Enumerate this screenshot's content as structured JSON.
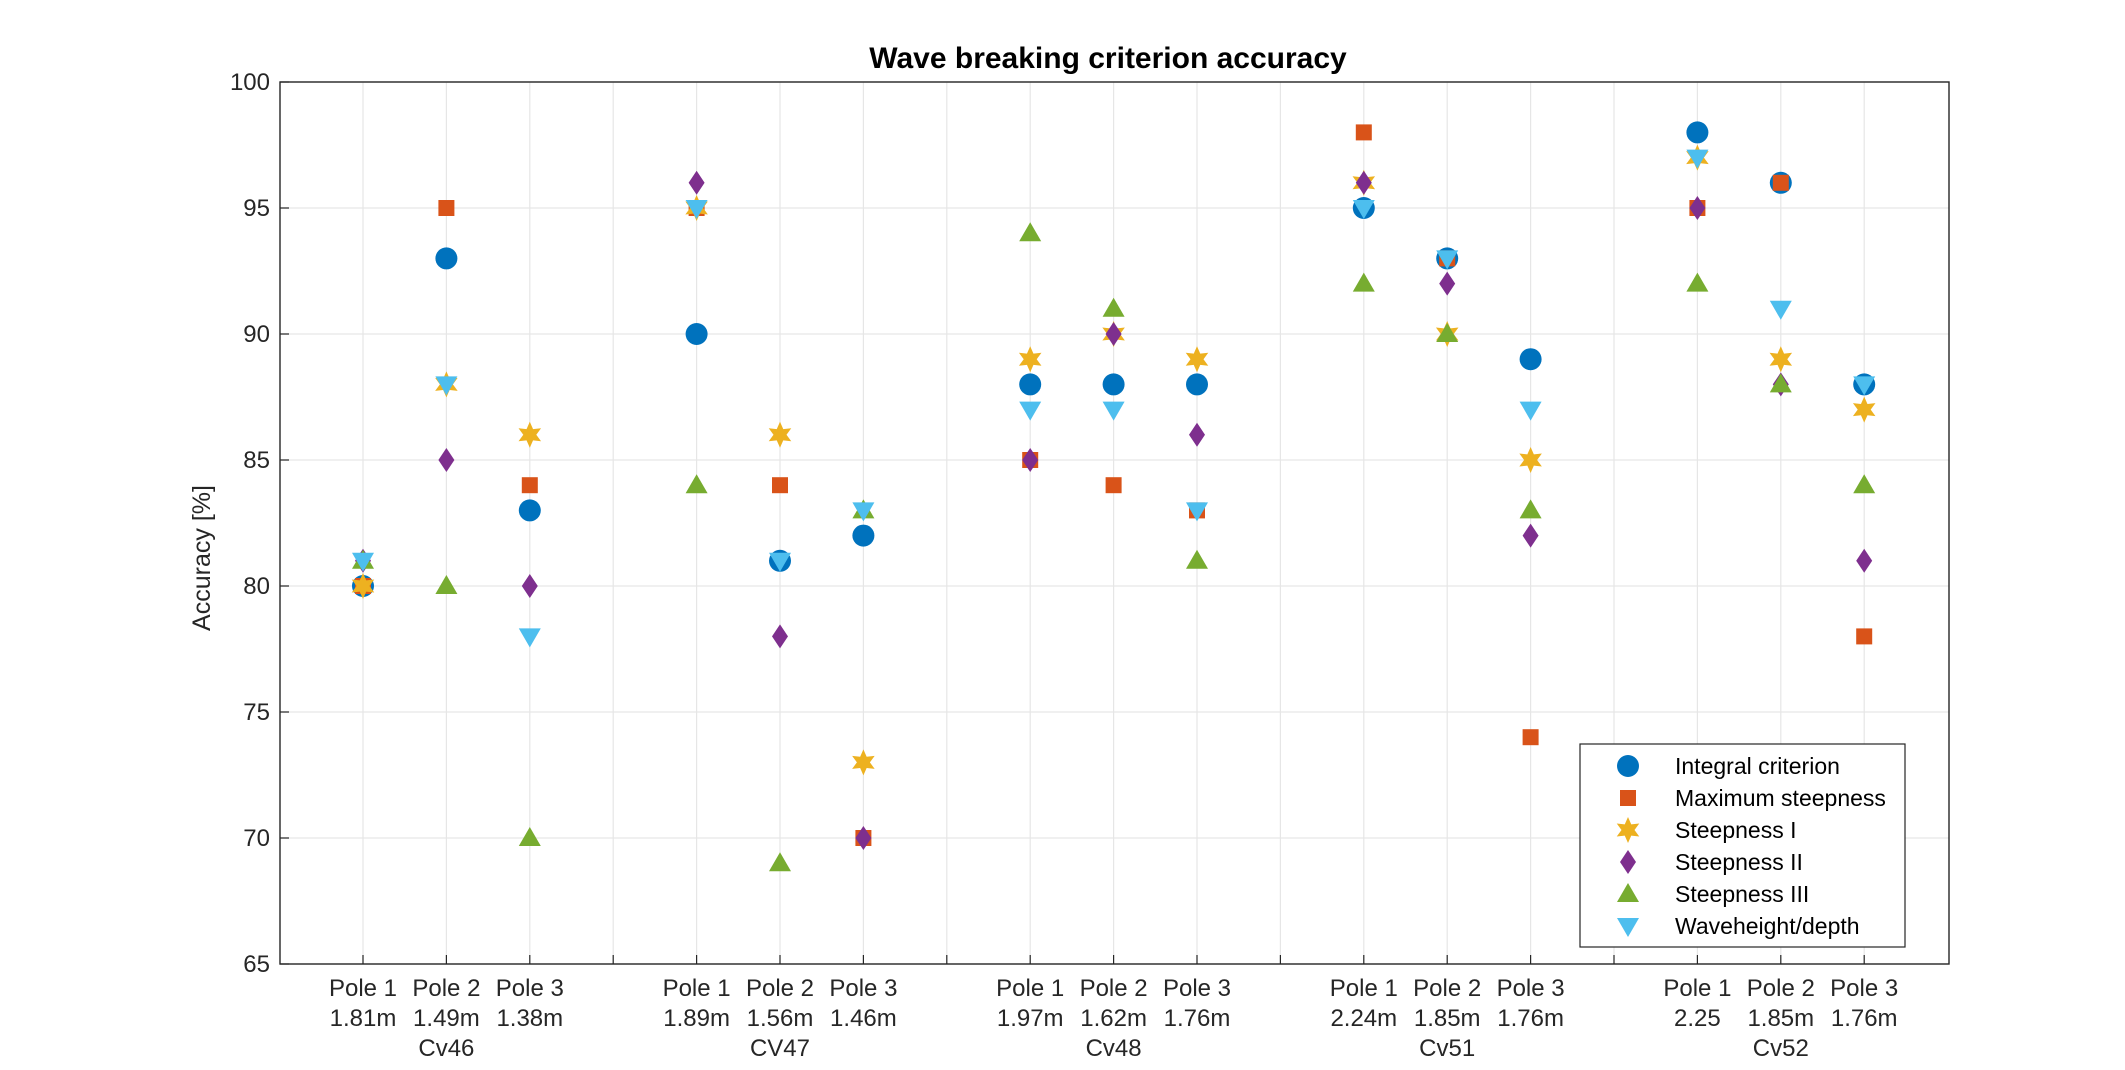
{
  "chart_data": {
    "type": "scatter",
    "title": "Wave breaking criterion accuracy",
    "ylabel": "Accuracy [%]",
    "xlabel": "",
    "ylim": [
      65,
      100
    ],
    "yticks": [
      65,
      70,
      75,
      80,
      85,
      90,
      95,
      100
    ],
    "grid": true,
    "legend_position": "bottom-right",
    "groups": [
      {
        "name": "Cv46",
        "poles": [
          {
            "pole": "Pole 1",
            "depth": "1.81m"
          },
          {
            "pole": "Pole 2",
            "depth": "1.49m"
          },
          {
            "pole": "Pole 3",
            "depth": "1.38m"
          }
        ]
      },
      {
        "name": "CV47",
        "poles": [
          {
            "pole": "Pole 1",
            "depth": "1.89m"
          },
          {
            "pole": "Pole 2",
            "depth": "1.56m"
          },
          {
            "pole": "Pole 3",
            "depth": "1.46m"
          }
        ]
      },
      {
        "name": "Cv48",
        "poles": [
          {
            "pole": "Pole 1",
            "depth": "1.97m"
          },
          {
            "pole": "Pole 2",
            "depth": "1.62m"
          },
          {
            "pole": "Pole 3",
            "depth": "1.76m"
          }
        ]
      },
      {
        "name": "Cv51",
        "poles": [
          {
            "pole": "Pole 1",
            "depth": "2.24m"
          },
          {
            "pole": "Pole 2",
            "depth": "1.85m"
          },
          {
            "pole": "Pole 3",
            "depth": "1.76m"
          }
        ]
      },
      {
        "name": "Cv52",
        "poles": [
          {
            "pole": "Pole 1",
            "depth": "2.25"
          },
          {
            "pole": "Pole 2",
            "depth": "1.85m"
          },
          {
            "pole": "Pole 3",
            "depth": "1.76m"
          }
        ]
      }
    ],
    "series": [
      {
        "name": "Integral criterion",
        "marker": "circle",
        "color": "#0072BD",
        "values": [
          80,
          93,
          83,
          90,
          81,
          82,
          88,
          88,
          88,
          95,
          93,
          89,
          98,
          96,
          88
        ]
      },
      {
        "name": "Maximum steepness",
        "marker": "square",
        "color": "#D95319",
        "values": [
          80,
          95,
          84,
          95,
          84,
          70,
          85,
          84,
          83,
          98,
          93,
          74,
          95,
          96,
          78
        ]
      },
      {
        "name": "Steepness I",
        "marker": "hexagram",
        "color": "#EDB120",
        "values": [
          80,
          88,
          86,
          95,
          86,
          73,
          89,
          90,
          89,
          96,
          90,
          85,
          97,
          89,
          87
        ]
      },
      {
        "name": "Steepness II",
        "marker": "diamond",
        "color": "#7E2F8E",
        "values": [
          81,
          85,
          80,
          96,
          78,
          70,
          85,
          90,
          86,
          96,
          92,
          82,
          95,
          88,
          81
        ]
      },
      {
        "name": "Steepness III",
        "marker": "triangle-up",
        "color": "#77AC30",
        "values": [
          81,
          80,
          70,
          84,
          69,
          83,
          94,
          91,
          81,
          92,
          90,
          83,
          92,
          88,
          84
        ]
      },
      {
        "name": "Waveheight/depth",
        "marker": "triangle-down",
        "color": "#4DBEEE",
        "values": [
          81,
          88,
          78,
          95,
          81,
          83,
          87,
          87,
          83,
          95,
          93,
          87,
          97,
          91,
          88
        ]
      }
    ]
  }
}
